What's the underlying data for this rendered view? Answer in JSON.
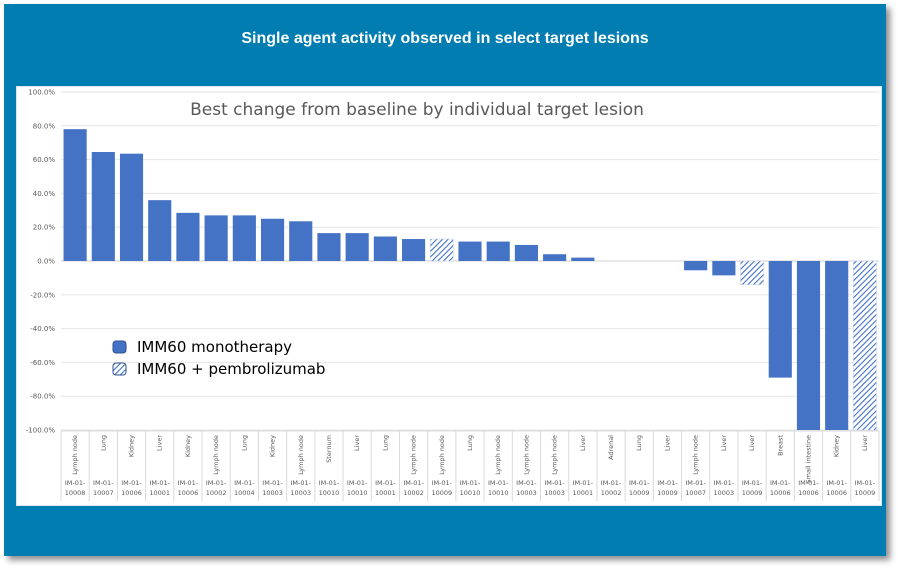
{
  "slide": {
    "title": "Single agent activity observed in select target lesions",
    "background_color": "#017db1"
  },
  "chart_data": {
    "type": "bar",
    "title": "Best change from baseline by individual target lesion",
    "xlabel": "",
    "ylabel": "",
    "ylim": [
      -100,
      100
    ],
    "yticks": [
      100,
      80,
      60,
      40,
      20,
      0,
      -20,
      -40,
      -60,
      -80,
      -100
    ],
    "ytick_labels": [
      "100.0%",
      "80.0%",
      "60.0%",
      "40.0%",
      "20.0%",
      "0.0%",
      "-20.0%",
      "-40.0%",
      "-60.0%",
      "-80.0%",
      "-100.0%"
    ],
    "grid": true,
    "legend_position": "lower-left",
    "series": [
      {
        "name": "IMM60 monotherapy",
        "color": "#4472c4",
        "pattern": "solid"
      },
      {
        "name": "IMM60 + pembrolizumab",
        "color": "#4472c4",
        "pattern": "hatched"
      }
    ],
    "categories": [
      {
        "lesion": "Lymph node",
        "patient": "IM-01-10008",
        "value": 78.0,
        "series": 0
      },
      {
        "lesion": "Lung",
        "patient": "IM-01-10007",
        "value": 64.5,
        "series": 0
      },
      {
        "lesion": "Kidney",
        "patient": "IM-01-10006",
        "value": 63.5,
        "series": 0
      },
      {
        "lesion": "Liver",
        "patient": "IM-01-10001",
        "value": 36.0,
        "series": 0
      },
      {
        "lesion": "Kidney",
        "patient": "IM-01-10006",
        "value": 28.5,
        "series": 0
      },
      {
        "lesion": "Lymph node",
        "patient": "IM-01-10002",
        "value": 27.0,
        "series": 0
      },
      {
        "lesion": "Lung",
        "patient": "IM-01-10004",
        "value": 27.0,
        "series": 0
      },
      {
        "lesion": "Kidney",
        "patient": "IM-01-10003",
        "value": 25.0,
        "series": 0
      },
      {
        "lesion": "Lymph node",
        "patient": "IM-01-10003",
        "value": 23.5,
        "series": 0
      },
      {
        "lesion": "Sternum",
        "patient": "IM-01-10010",
        "value": 16.5,
        "series": 0
      },
      {
        "lesion": "Liver",
        "patient": "IM-01-10010",
        "value": 16.5,
        "series": 0
      },
      {
        "lesion": "Lung",
        "patient": "IM-01-10001",
        "value": 14.5,
        "series": 0
      },
      {
        "lesion": "Lymph node",
        "patient": "IM-01-10002",
        "value": 13.0,
        "series": 0
      },
      {
        "lesion": "Lymph node",
        "patient": "IM-01-10009",
        "value": 13.0,
        "series": 1
      },
      {
        "lesion": "Lung",
        "patient": "IM-01-10010",
        "value": 11.5,
        "series": 0
      },
      {
        "lesion": "Lymph node",
        "patient": "IM-01-10010",
        "value": 11.5,
        "series": 0
      },
      {
        "lesion": "Lymph node",
        "patient": "IM-01-10003",
        "value": 9.5,
        "series": 0
      },
      {
        "lesion": "Lymph node",
        "patient": "IM-01-10003",
        "value": 4.0,
        "series": 0
      },
      {
        "lesion": "Liver",
        "patient": "IM-01-10001",
        "value": 2.0,
        "series": 0
      },
      {
        "lesion": "Adrenal",
        "patient": "IM-01-10002",
        "value": 0.0,
        "series": 0
      },
      {
        "lesion": "Lung",
        "patient": "IM-01-10009",
        "value": 0.0,
        "series": 1
      },
      {
        "lesion": "Liver",
        "patient": "IM-01-10009",
        "value": 0.0,
        "series": 1
      },
      {
        "lesion": "Lymph node",
        "patient": "IM-01-10007",
        "value": -5.5,
        "series": 0
      },
      {
        "lesion": "Liver",
        "patient": "IM-01-10003",
        "value": -8.5,
        "series": 0
      },
      {
        "lesion": "Liver",
        "patient": "IM-01-10009",
        "value": -14.0,
        "series": 1
      },
      {
        "lesion": "Breast",
        "patient": "IM-01-10006",
        "value": -69.0,
        "series": 0
      },
      {
        "lesion": "Small intestine",
        "patient": "IM-01-10006",
        "value": -100.0,
        "series": 0
      },
      {
        "lesion": "Kidney",
        "patient": "IM-01-10006",
        "value": -100.0,
        "series": 0
      },
      {
        "lesion": "Liver",
        "patient": "IM-01-10009",
        "value": -100.0,
        "series": 1
      }
    ]
  }
}
